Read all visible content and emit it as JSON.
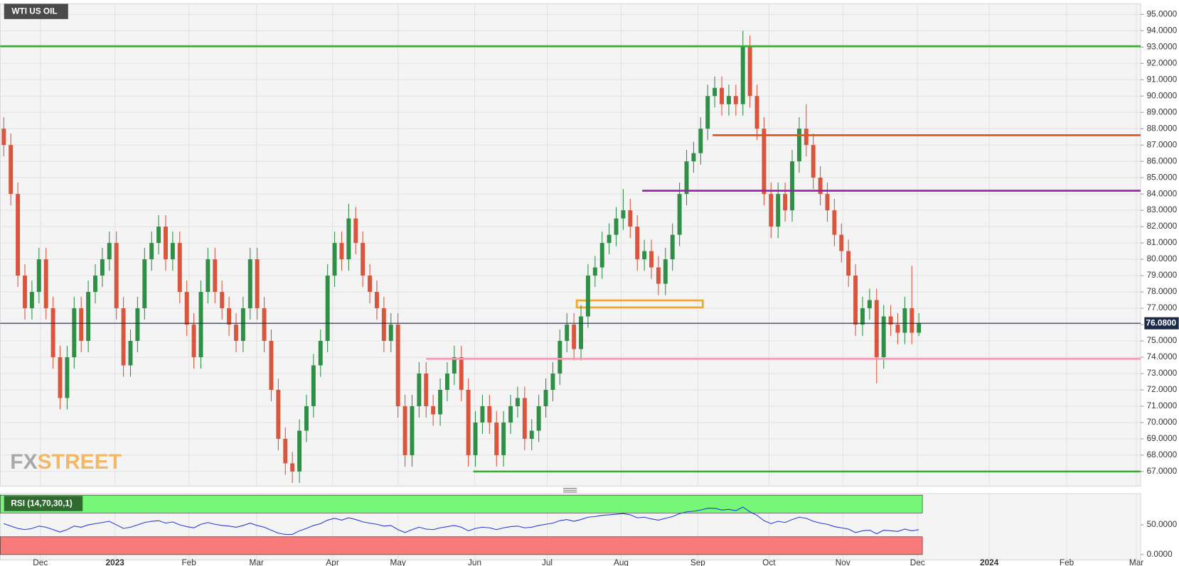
{
  "chart_data": [
    {
      "type": "candlestick",
      "title": "WTI US OIL",
      "watermark_left": "FX",
      "watermark_right": "STREET",
      "open": [
        88,
        87,
        84,
        79,
        77,
        78,
        80,
        77,
        74,
        71.5,
        74,
        77,
        75,
        78,
        79,
        80,
        81,
        77,
        73.5,
        75,
        77,
        80,
        81,
        82,
        80,
        81,
        78,
        76,
        74,
        78,
        80,
        78,
        77,
        76,
        75,
        77,
        80,
        77,
        75,
        72,
        69,
        67.5,
        67,
        69.5,
        71,
        73.5,
        75,
        79,
        81,
        80,
        82.5,
        81,
        79,
        78,
        77,
        75,
        76,
        71,
        68,
        71,
        73,
        71,
        70.5,
        72,
        73,
        74,
        72,
        68,
        70,
        71,
        70,
        68,
        70,
        71,
        71.5,
        69,
        69.5,
        71,
        72,
        73,
        75,
        76,
        74.5,
        76.5,
        79,
        79.5,
        81,
        81.5,
        82.5,
        83,
        82,
        80,
        80.5,
        79.5,
        78.5,
        80,
        81.5,
        84,
        86,
        86.5,
        88,
        90,
        90.5,
        89.5,
        90,
        89.5,
        93,
        90,
        88,
        84,
        82,
        84,
        83,
        86,
        88,
        87,
        85,
        84,
        83,
        81.5,
        80.5,
        79,
        76,
        77,
        77.5,
        74,
        76.5,
        76,
        75.5,
        77,
        75.5
      ],
      "high": [
        88.7,
        87.7,
        84.7,
        79.7,
        78.7,
        80.7,
        80.7,
        77.7,
        74.7,
        74.7,
        77.7,
        77.7,
        78.7,
        79.7,
        80.7,
        81.7,
        81.7,
        77.7,
        75.7,
        77.7,
        80.7,
        81.7,
        82.7,
        82.7,
        81.7,
        81.7,
        78.7,
        76.7,
        78.7,
        80.7,
        80.7,
        78.7,
        77.7,
        76.7,
        77.7,
        80.7,
        80.7,
        77.7,
        75.7,
        72.7,
        69.7,
        68.2,
        70.2,
        71.7,
        74.2,
        75.7,
        79.7,
        81.7,
        81.7,
        83.4,
        83.2,
        81.7,
        79.7,
        78.7,
        77.7,
        76.7,
        76.7,
        71.7,
        71.7,
        73.7,
        73.7,
        71.7,
        72.7,
        73.7,
        74.7,
        74.7,
        72.7,
        70.7,
        71.7,
        71.7,
        70.7,
        70.7,
        71.7,
        72.2,
        72.2,
        70.2,
        71.7,
        72.7,
        73.7,
        75.7,
        76.7,
        76.7,
        77.2,
        79.7,
        80.2,
        81.7,
        82.2,
        83.2,
        84.3,
        83.7,
        82.7,
        81.2,
        81.2,
        80.2,
        80.7,
        82.2,
        84.7,
        86.7,
        87.2,
        88.7,
        90.7,
        91.2,
        91.2,
        90.7,
        90.7,
        94,
        93.7,
        90.7,
        88.7,
        84.7,
        84.7,
        84.7,
        86.7,
        88.7,
        89.5,
        87.7,
        85.7,
        84.7,
        83.7,
        82.2,
        81.2,
        79.7,
        77.7,
        78.2,
        78.2,
        77.2,
        77.2,
        76.7,
        77.7,
        79.6,
        76.7
      ],
      "low": [
        86.3,
        83.3,
        78.3,
        76.3,
        76.3,
        77.3,
        76.3,
        73.3,
        70.8,
        70.8,
        73.3,
        74.3,
        74.3,
        77.3,
        78.3,
        79.3,
        76.3,
        72.8,
        72.8,
        74.3,
        76.3,
        79.3,
        80.3,
        79.3,
        79.3,
        77.3,
        75.3,
        73.3,
        73.3,
        77.3,
        77.3,
        76.3,
        75.3,
        74.3,
        74.3,
        76.3,
        76.3,
        74.3,
        71.3,
        68.3,
        66.8,
        66.3,
        66.3,
        68.8,
        70.3,
        72.8,
        74.3,
        78.3,
        79.3,
        79.3,
        80.3,
        78.3,
        77.3,
        76.3,
        74.3,
        74.3,
        70.3,
        67.3,
        67.3,
        70.3,
        70.3,
        69.8,
        69.8,
        71.3,
        72.3,
        71.3,
        67.3,
        67.3,
        69.3,
        69.3,
        67.3,
        67.3,
        69.3,
        70.3,
        68.3,
        68.3,
        68.8,
        70.3,
        71.3,
        72.3,
        74.3,
        73.8,
        73.8,
        75.8,
        78.3,
        78.8,
        80.3,
        80.8,
        81.8,
        81.3,
        79.3,
        79.3,
        78.8,
        77.8,
        77.8,
        79.3,
        80.8,
        83.3,
        85.3,
        85.8,
        87.3,
        89.3,
        88.8,
        88.8,
        88.8,
        88.8,
        89.3,
        87.3,
        83.3,
        81.3,
        81.3,
        82.3,
        82.3,
        85.3,
        86.3,
        84.3,
        83.3,
        82.3,
        80.8,
        79.8,
        78.3,
        75.3,
        75.3,
        76.3,
        72.4,
        73.3,
        75.3,
        74.8,
        74.8,
        74.8,
        75.3
      ],
      "close": [
        87,
        84,
        79,
        77,
        78,
        80,
        77,
        74,
        71.5,
        74,
        77,
        75,
        78,
        79,
        80,
        81,
        77,
        73.5,
        75,
        77,
        80,
        81,
        82,
        80,
        81,
        78,
        76,
        74,
        78,
        80,
        78,
        77,
        76,
        75,
        77,
        80,
        77,
        75,
        72,
        69,
        67.5,
        67,
        69.5,
        71,
        73.5,
        75,
        79,
        81,
        80,
        82.5,
        81,
        79,
        78,
        77,
        75,
        76,
        71,
        68,
        71,
        73,
        71,
        70.5,
        72,
        73,
        74,
        72,
        68,
        70,
        71,
        70,
        68,
        70,
        71,
        71.5,
        69,
        69.5,
        71,
        72,
        73,
        75,
        76,
        74.5,
        76.5,
        79,
        79.5,
        81,
        81.5,
        82.5,
        83,
        82,
        80,
        80.5,
        79.5,
        78.5,
        80,
        81.5,
        84,
        86,
        86.5,
        88,
        90,
        90.5,
        89.5,
        90,
        89.5,
        93,
        90,
        88,
        84,
        82,
        84,
        83,
        86,
        88,
        87,
        85,
        84,
        83,
        81.5,
        80.5,
        79,
        76,
        77,
        77.5,
        74,
        76.5,
        76,
        75.5,
        77,
        75.5,
        76.08
      ],
      "colors": {
        "up": "#2f8f46",
        "down": "#d9553c"
      },
      "last_price": {
        "value": 76.08,
        "label": "76.0800"
      },
      "last_price_color": "#1c2a4a",
      "levels": [
        {
          "value": 93.05,
          "color": "#3daa35"
        },
        {
          "value": 87.6,
          "color": "#e0561b"
        },
        {
          "value": 84.2,
          "color": "#9b1fa8"
        },
        {
          "value": 73.9,
          "color": "#f29bb5"
        },
        {
          "value": 67.0,
          "color": "#3daa35"
        }
      ],
      "zones": [
        {
          "low": 77.05,
          "high": 77.48,
          "color": "#f5a623"
        }
      ],
      "xlim": [
        0,
        162
      ],
      "xticks": [
        {
          "value": 5.7,
          "label": "Dec"
        },
        {
          "value": 16.3,
          "label": "2023"
        },
        {
          "value": 26.8,
          "label": "Feb"
        },
        {
          "value": 36.4,
          "label": "Mar"
        },
        {
          "value": 47.2,
          "label": "Apr"
        },
        {
          "value": 56.5,
          "label": "May"
        },
        {
          "value": 67.4,
          "label": "Jun"
        },
        {
          "value": 77.7,
          "label": "Jul"
        },
        {
          "value": 88.2,
          "label": "Aug"
        },
        {
          "value": 99.1,
          "label": "Sep"
        },
        {
          "value": 109.2,
          "label": "Oct"
        },
        {
          "value": 119.7,
          "label": "Nov"
        },
        {
          "value": 130.3,
          "label": "Dec"
        },
        {
          "value": 140.5,
          "label": "2024"
        },
        {
          "value": 151.5,
          "label": "Feb"
        },
        {
          "value": 161.4,
          "label": "Mar"
        }
      ],
      "ylim": [
        66.11,
        95.65
      ],
      "yticks": [
        {
          "value": 67,
          "label": "67.0000"
        },
        {
          "value": 68,
          "label": "68.0000"
        },
        {
          "value": 69,
          "label": "69.0000"
        },
        {
          "value": 70,
          "label": "70.0000"
        },
        {
          "value": 71,
          "label": "71.0000"
        },
        {
          "value": 72,
          "label": "72.0000"
        },
        {
          "value": 73,
          "label": "73.0000"
        },
        {
          "value": 74,
          "label": "74.0000"
        },
        {
          "value": 75,
          "label": "75.0000"
        },
        {
          "value": 76,
          "label": "76.0000"
        },
        {
          "value": 77,
          "label": "77.0000"
        },
        {
          "value": 78,
          "label": "78.0000"
        },
        {
          "value": 79,
          "label": "79.0000"
        },
        {
          "value": 80,
          "label": "80.0000"
        },
        {
          "value": 81,
          "label": "81.0000"
        },
        {
          "value": 82,
          "label": "82.0000"
        },
        {
          "value": 83,
          "label": "83.0000"
        },
        {
          "value": 84,
          "label": "84.0000"
        },
        {
          "value": 85,
          "label": "85.0000"
        },
        {
          "value": 86,
          "label": "86.0000"
        },
        {
          "value": 87,
          "label": "87.0000"
        },
        {
          "value": 88,
          "label": "88.0000"
        },
        {
          "value": 89,
          "label": "89.0000"
        },
        {
          "value": 90,
          "label": "90.0000"
        },
        {
          "value": 91,
          "label": "91.0000"
        },
        {
          "value": 92,
          "label": "92.0000"
        },
        {
          "value": 93,
          "label": "93.0000"
        },
        {
          "value": 94,
          "label": "94.0000"
        },
        {
          "value": 95,
          "label": "95.0000"
        }
      ],
      "grid": true
    },
    {
      "type": "line",
      "title": "RSI (14,70,30,1)",
      "values": [
        52,
        48,
        44,
        42,
        44,
        48,
        46,
        42,
        38,
        42,
        48,
        46,
        50,
        52,
        54,
        56,
        50,
        44,
        46,
        50,
        54,
        56,
        57,
        53,
        55,
        50,
        47,
        45,
        51,
        54,
        51,
        49,
        48,
        46,
        49,
        53,
        49,
        46,
        41,
        36,
        34,
        34,
        40,
        44,
        49,
        52,
        58,
        61,
        58,
        62,
        59,
        55,
        53,
        51,
        48,
        49,
        42,
        37,
        42,
        46,
        43,
        42,
        45,
        47,
        49,
        46,
        40,
        44,
        46,
        45,
        42,
        45,
        47,
        48,
        45,
        46,
        49,
        51,
        53,
        57,
        59,
        56,
        59,
        63,
        64,
        66,
        67,
        68,
        69,
        67,
        62,
        63,
        60,
        58,
        61,
        64,
        69,
        72,
        73,
        75,
        78,
        78,
        75,
        76,
        74,
        80,
        72,
        66,
        57,
        52,
        56,
        54,
        59,
        63,
        61,
        56,
        53,
        51,
        47,
        45,
        43,
        37,
        40,
        41,
        35,
        41,
        40,
        39,
        43,
        40,
        42
      ],
      "color": "#2a3bd6",
      "overbought": 70,
      "oversold": 30,
      "overbought_color": "#77f777",
      "oversold_color": "#f77b7b",
      "ylim": [
        -9,
        102.6
      ],
      "yticks": [
        {
          "value": 50,
          "label": "50.0000"
        },
        {
          "value": 0,
          "label": "0.0000"
        }
      ]
    }
  ]
}
